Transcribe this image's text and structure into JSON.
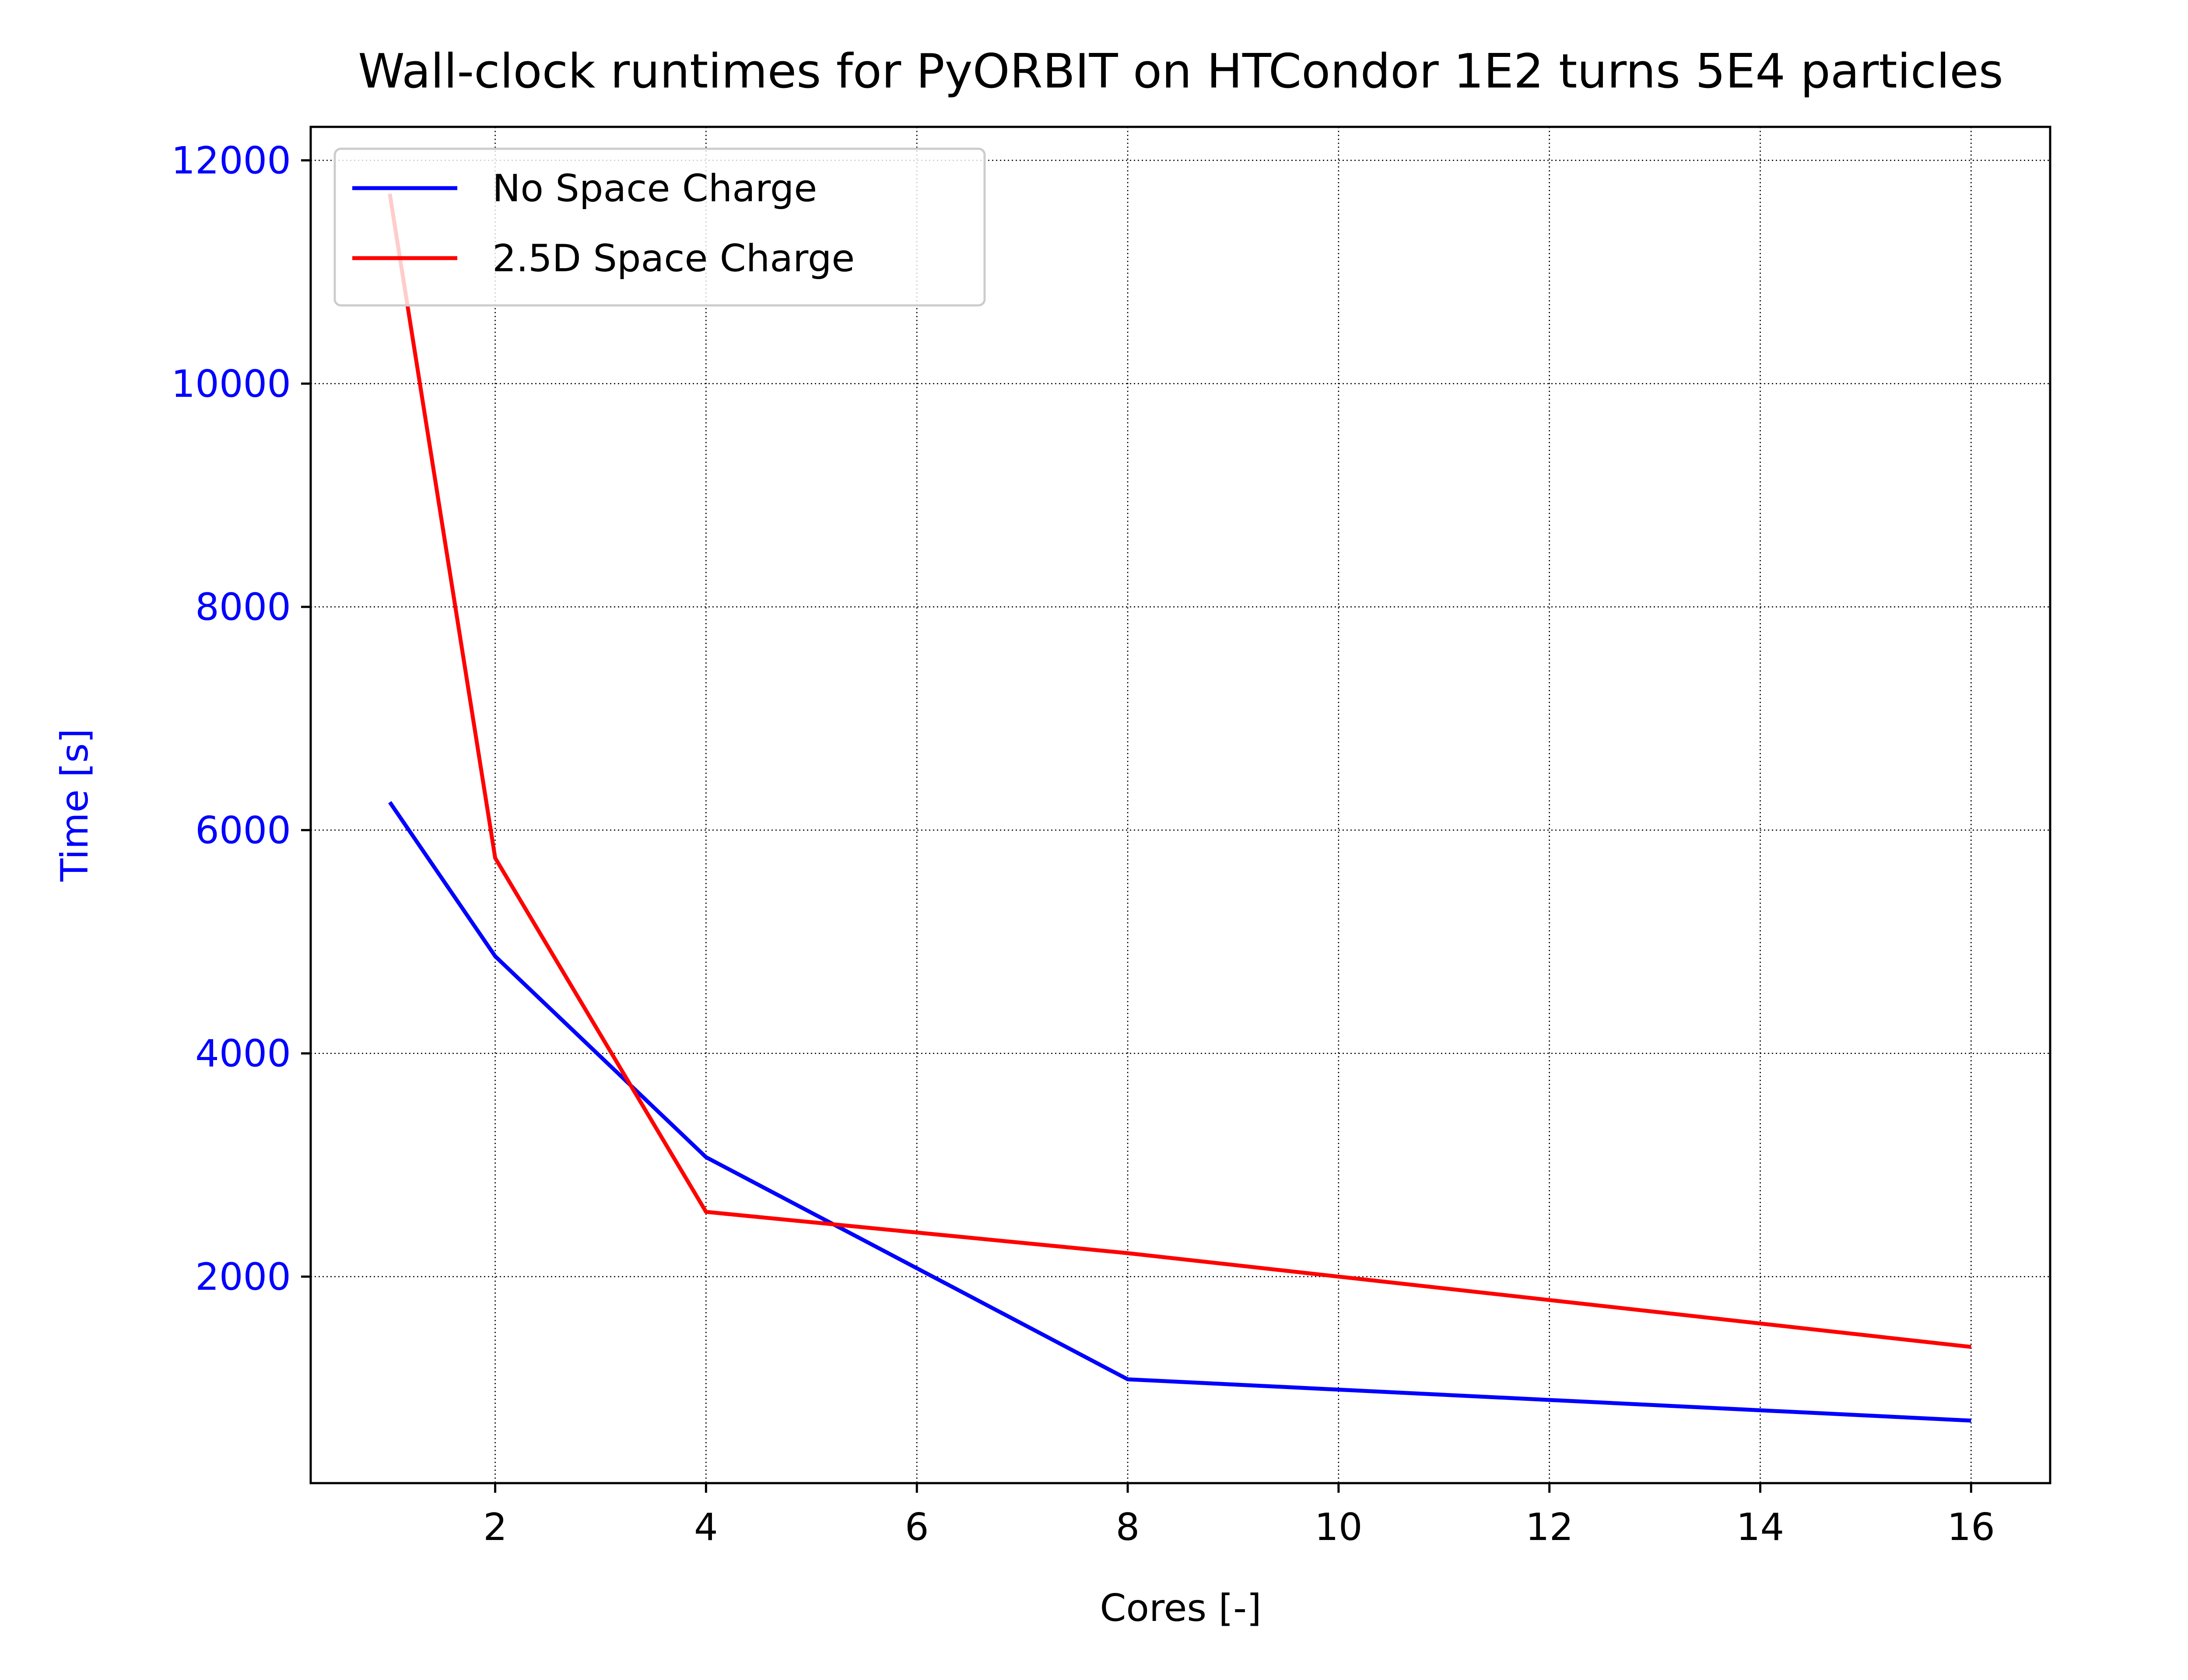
{
  "chart_data": {
    "type": "line",
    "title": "Wall-clock runtimes for PyORBIT on HTCondor 1E2 turns 5E4 particles",
    "xlabel": "Cores [-]",
    "ylabel": "Time [s]",
    "xlim": [
      0.25,
      16.75
    ],
    "ylim": [
      150,
      12300
    ],
    "xticks": [
      2,
      4,
      6,
      8,
      10,
      12,
      14,
      16
    ],
    "yticks": [
      2000,
      4000,
      6000,
      8000,
      10000,
      12000
    ],
    "xtick_labels": [
      "2",
      "4",
      "6",
      "8",
      "10",
      "12",
      "14",
      "16"
    ],
    "ytick_labels": [
      "2000",
      "4000",
      "6000",
      "8000",
      "10000",
      "12000"
    ],
    "grid": true,
    "legend_position": "top-left",
    "ylabel_color": "#0000ff",
    "ytick_color": "#0000ff",
    "series": [
      {
        "name": "No Space Charge",
        "color": "#0000ff",
        "x": [
          1,
          2,
          4,
          8,
          16
        ],
        "y": [
          6250,
          4870,
          3070,
          1080,
          710
        ]
      },
      {
        "name": "2.5D Space Charge",
        "color": "#ff0000",
        "x": [
          1,
          2,
          4,
          8,
          16
        ],
        "y": [
          11700,
          5750,
          2580,
          2210,
          1370
        ]
      }
    ]
  }
}
